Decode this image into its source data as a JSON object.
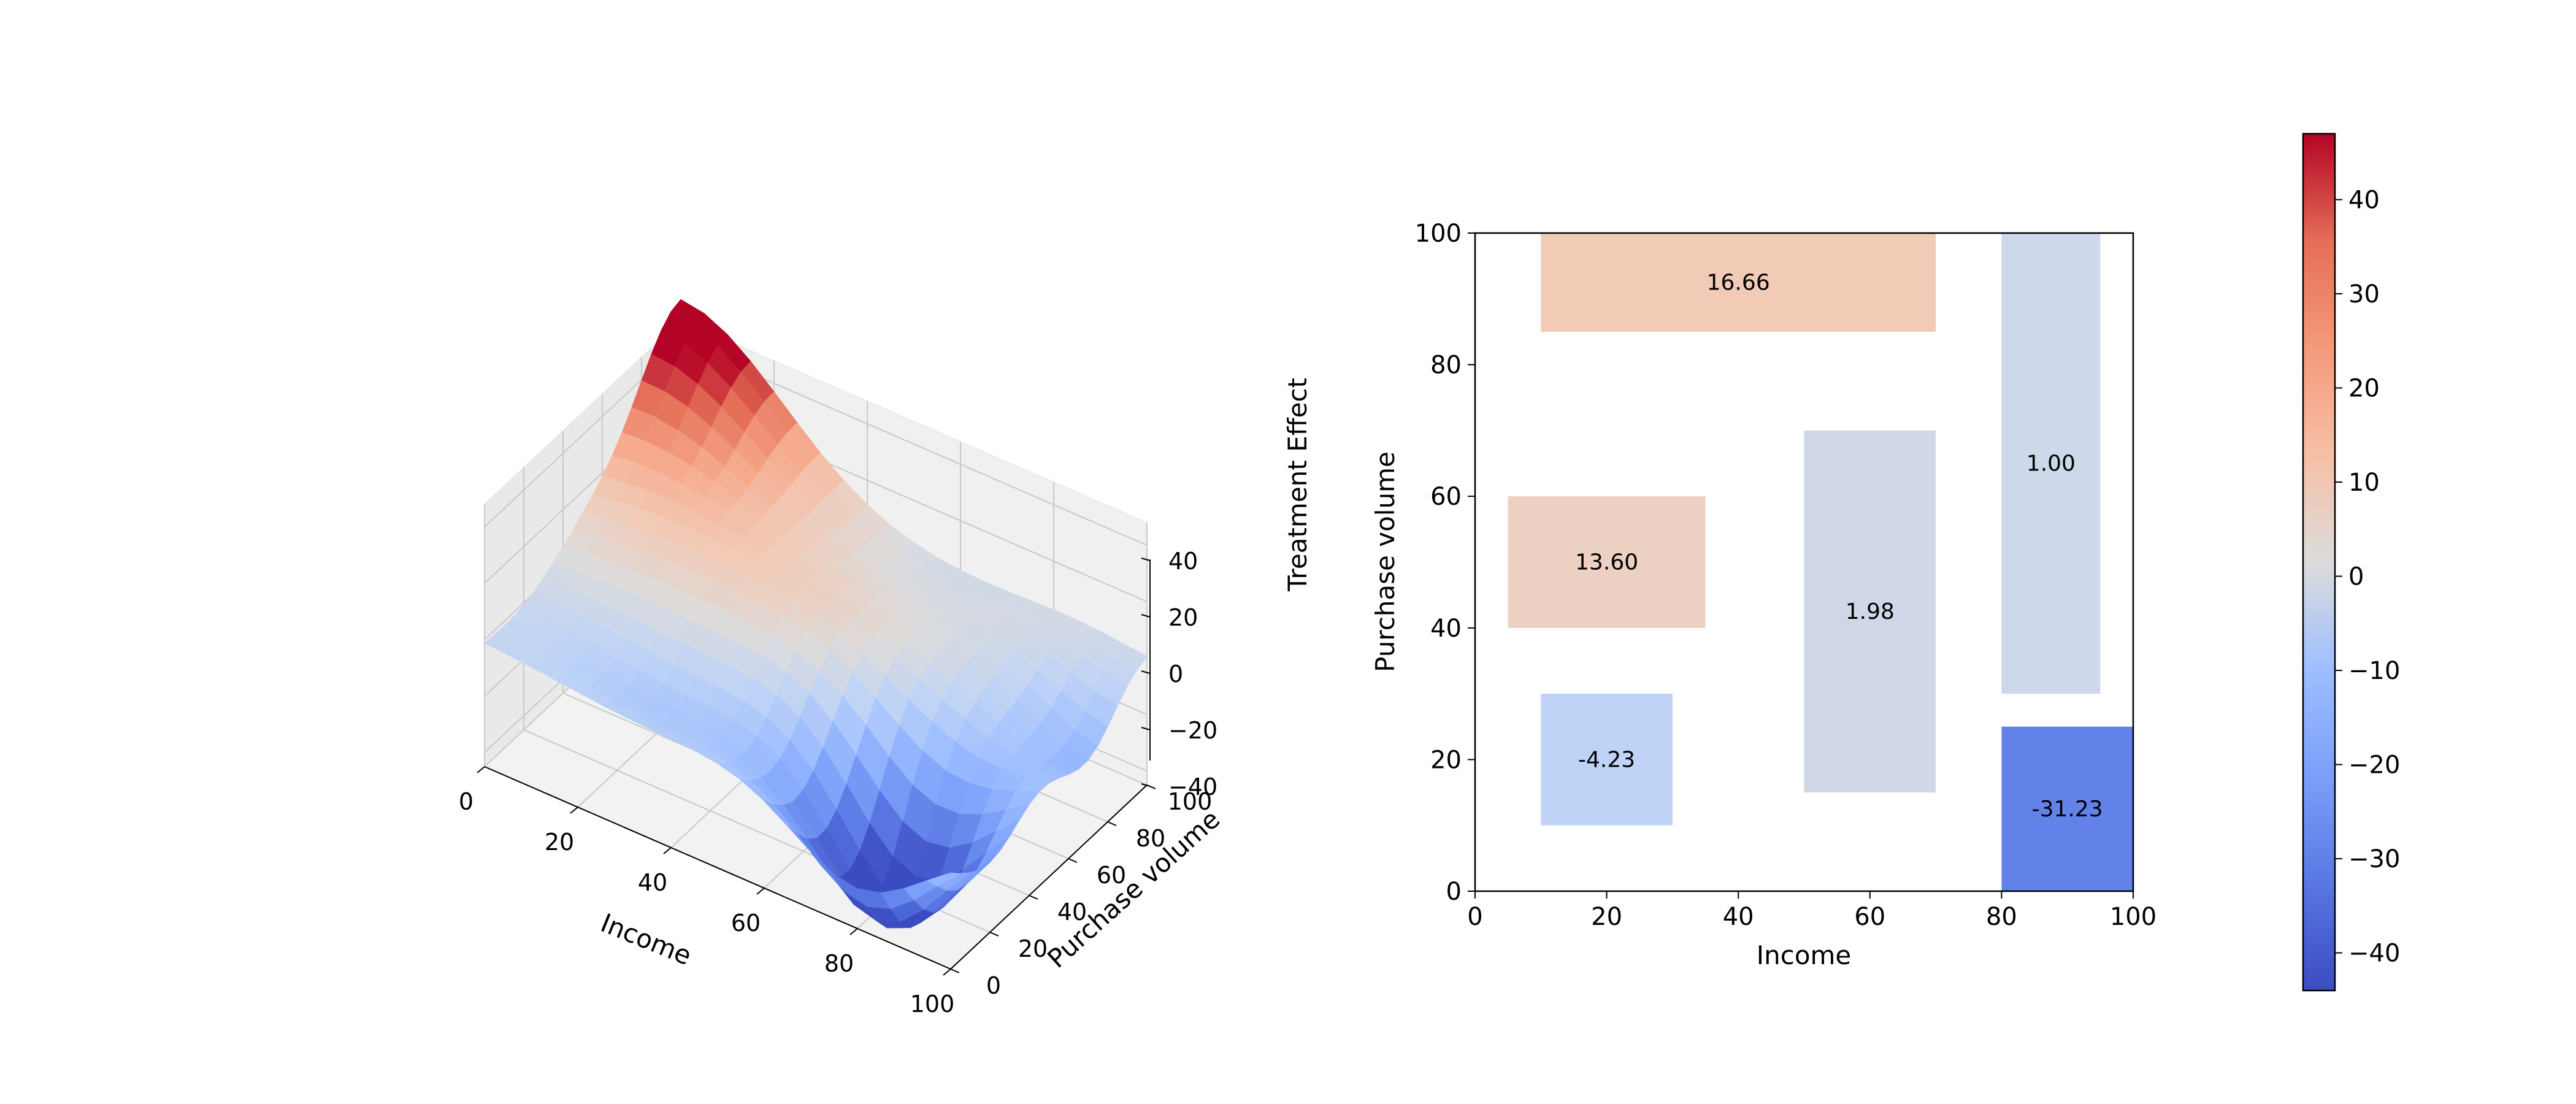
{
  "chart_data": [
    {
      "type": "surface3d",
      "xlabel": "Income",
      "ylabel": "Purchase volume",
      "zlabel": "Treatment Effect",
      "xlim": [
        0,
        100
      ],
      "ylim": [
        0,
        100
      ],
      "zlim": [
        -45,
        48
      ],
      "x_ticks": [
        "0",
        "20",
        "40",
        "60",
        "80",
        "100"
      ],
      "y_ticks": [
        "0",
        "20",
        "40",
        "60",
        "80",
        "100"
      ],
      "z_ticks": [
        "−40",
        "−20",
        "0",
        "20",
        "40"
      ],
      "colormap": "coolwarm",
      "grid": true,
      "bumps": [
        {
          "x": 0,
          "y": 100,
          "amp": 55,
          "sx": 22,
          "sy": 22
        },
        {
          "x": 80,
          "y": 20,
          "amp": -56,
          "sx": 14,
          "sy": 18
        },
        {
          "x": 25,
          "y": 55,
          "amp": 14,
          "sx": 25,
          "sy": 18
        },
        {
          "x": 60,
          "y": 45,
          "amp": 6,
          "sx": 18,
          "sy": 25
        },
        {
          "x": 40,
          "y": 15,
          "amp": -12,
          "sx": 22,
          "sy": 14
        },
        {
          "x": 100,
          "y": 70,
          "amp": -18,
          "sx": 12,
          "sy": 15
        },
        {
          "x": 90,
          "y": 90,
          "amp": 5,
          "sx": 14,
          "sy": 14
        }
      ]
    },
    {
      "type": "heatmap",
      "xlabel": "Income",
      "ylabel": "Purchase volume",
      "xlim": [
        0,
        100
      ],
      "ylim": [
        0,
        100
      ],
      "x_ticks": [
        "0",
        "20",
        "40",
        "60",
        "80",
        "100"
      ],
      "y_ticks": [
        "0",
        "20",
        "40",
        "60",
        "80",
        "100"
      ],
      "regions": [
        {
          "x0": 10,
          "x1": 70,
          "y0": 85,
          "y1": 100,
          "value": 16.66,
          "label": "16.66"
        },
        {
          "x0": 5,
          "x1": 35,
          "y0": 40,
          "y1": 60,
          "value": 13.6,
          "label": "13.60"
        },
        {
          "x0": 10,
          "x1": 30,
          "y0": 10,
          "y1": 30,
          "value": -4.23,
          "label": "-4.23"
        },
        {
          "x0": 50,
          "x1": 70,
          "y0": 15,
          "y1": 70,
          "value": 1.98,
          "label": "1.98"
        },
        {
          "x0": 80,
          "x1": 95,
          "y0": 30,
          "y1": 100,
          "value": 1.0,
          "label": "1.00"
        },
        {
          "x0": 80,
          "x1": 100,
          "y0": 0,
          "y1": 25,
          "value": -31.23,
          "label": "-31.23"
        }
      ]
    },
    {
      "type": "colorbar",
      "colormap": "coolwarm",
      "vmin": -44,
      "vmax": 47,
      "ticks": [
        {
          "value": -40,
          "label": "−40"
        },
        {
          "value": -30,
          "label": "−30"
        },
        {
          "value": -20,
          "label": "−20"
        },
        {
          "value": -10,
          "label": "−10"
        },
        {
          "value": 0,
          "label": "0"
        },
        {
          "value": 10,
          "label": "10"
        },
        {
          "value": 20,
          "label": "20"
        },
        {
          "value": 30,
          "label": "30"
        },
        {
          "value": 40,
          "label": "40"
        }
      ]
    }
  ]
}
